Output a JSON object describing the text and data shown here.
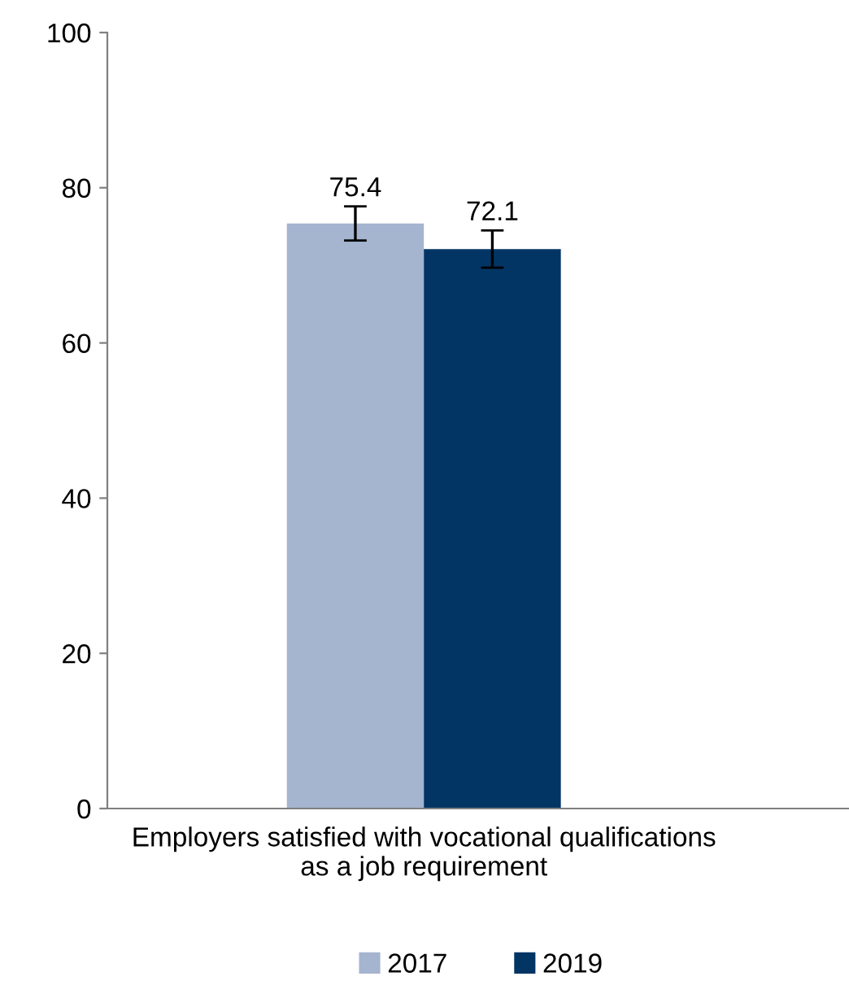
{
  "chart_data": {
    "type": "bar",
    "categories": [
      "Employers satisfied with vocational qualifications\nas a job requirement"
    ],
    "series": [
      {
        "name": "2017",
        "color": "#a5b4cf",
        "values": [
          75.4
        ],
        "errors": [
          [
            73.2,
            77.6
          ]
        ]
      },
      {
        "name": "2019",
        "color": "#023564",
        "values": [
          72.1
        ],
        "errors": [
          [
            69.7,
            74.5
          ]
        ]
      }
    ],
    "ylim": [
      0,
      100
    ],
    "yticks": [
      0,
      20,
      40,
      60,
      80,
      100
    ],
    "grid": false,
    "legend": "bottom",
    "data_labels": true
  }
}
